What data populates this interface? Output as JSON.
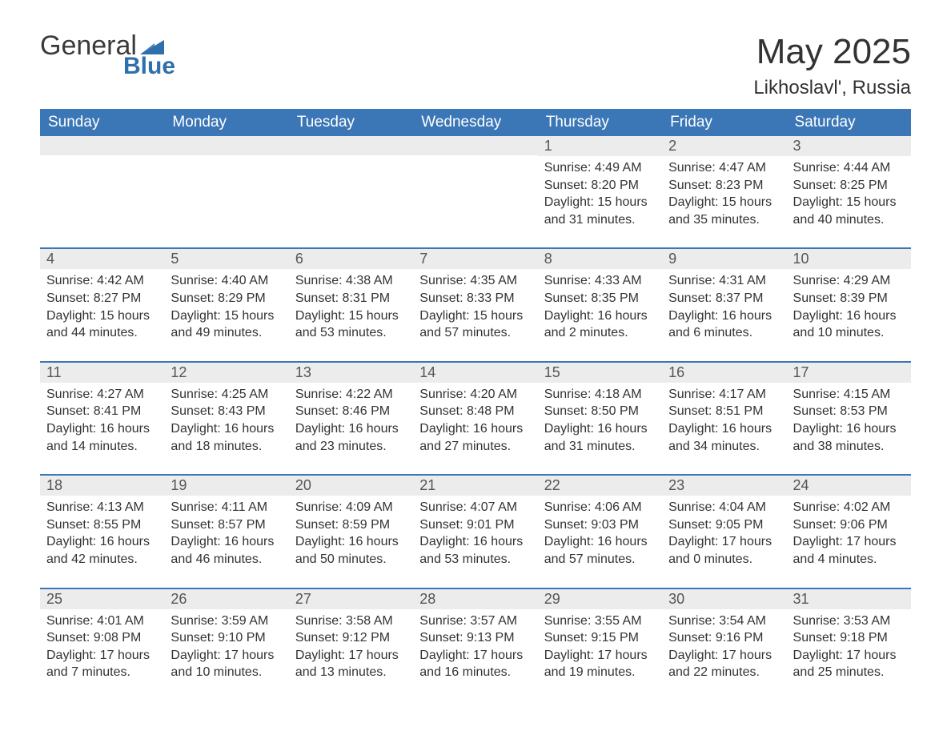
{
  "brand": {
    "word1": "General",
    "word2": "Blue",
    "logo_color": "#2f6fab"
  },
  "title": "May 2025",
  "location": "Likhoslavl', Russia",
  "colors": {
    "header_bg": "#3b77b6",
    "header_text": "#ffffff",
    "daynum_bg": "#ececec",
    "row_border": "#3b77b6",
    "text": "#333333",
    "background": "#ffffff"
  },
  "typography": {
    "title_fontsize": 44,
    "subtitle_fontsize": 24,
    "header_fontsize": 19,
    "daynum_fontsize": 18,
    "body_fontsize": 16,
    "font_family": "Arial"
  },
  "day_headers": [
    "Sunday",
    "Monday",
    "Tuesday",
    "Wednesday",
    "Thursday",
    "Friday",
    "Saturday"
  ],
  "labels": {
    "sunrise": "Sunrise:",
    "sunset": "Sunset:",
    "daylight": "Daylight:"
  },
  "weeks": [
    [
      {
        "empty": true
      },
      {
        "empty": true
      },
      {
        "empty": true
      },
      {
        "empty": true
      },
      {
        "day": "1",
        "sunrise": "4:49 AM",
        "sunset": "8:20 PM",
        "daylight": "15 hours and 31 minutes."
      },
      {
        "day": "2",
        "sunrise": "4:47 AM",
        "sunset": "8:23 PM",
        "daylight": "15 hours and 35 minutes."
      },
      {
        "day": "3",
        "sunrise": "4:44 AM",
        "sunset": "8:25 PM",
        "daylight": "15 hours and 40 minutes."
      }
    ],
    [
      {
        "day": "4",
        "sunrise": "4:42 AM",
        "sunset": "8:27 PM",
        "daylight": "15 hours and 44 minutes."
      },
      {
        "day": "5",
        "sunrise": "4:40 AM",
        "sunset": "8:29 PM",
        "daylight": "15 hours and 49 minutes."
      },
      {
        "day": "6",
        "sunrise": "4:38 AM",
        "sunset": "8:31 PM",
        "daylight": "15 hours and 53 minutes."
      },
      {
        "day": "7",
        "sunrise": "4:35 AM",
        "sunset": "8:33 PM",
        "daylight": "15 hours and 57 minutes."
      },
      {
        "day": "8",
        "sunrise": "4:33 AM",
        "sunset": "8:35 PM",
        "daylight": "16 hours and 2 minutes."
      },
      {
        "day": "9",
        "sunrise": "4:31 AM",
        "sunset": "8:37 PM",
        "daylight": "16 hours and 6 minutes."
      },
      {
        "day": "10",
        "sunrise": "4:29 AM",
        "sunset": "8:39 PM",
        "daylight": "16 hours and 10 minutes."
      }
    ],
    [
      {
        "day": "11",
        "sunrise": "4:27 AM",
        "sunset": "8:41 PM",
        "daylight": "16 hours and 14 minutes."
      },
      {
        "day": "12",
        "sunrise": "4:25 AM",
        "sunset": "8:43 PM",
        "daylight": "16 hours and 18 minutes."
      },
      {
        "day": "13",
        "sunrise": "4:22 AM",
        "sunset": "8:46 PM",
        "daylight": "16 hours and 23 minutes."
      },
      {
        "day": "14",
        "sunrise": "4:20 AM",
        "sunset": "8:48 PM",
        "daylight": "16 hours and 27 minutes."
      },
      {
        "day": "15",
        "sunrise": "4:18 AM",
        "sunset": "8:50 PM",
        "daylight": "16 hours and 31 minutes."
      },
      {
        "day": "16",
        "sunrise": "4:17 AM",
        "sunset": "8:51 PM",
        "daylight": "16 hours and 34 minutes."
      },
      {
        "day": "17",
        "sunrise": "4:15 AM",
        "sunset": "8:53 PM",
        "daylight": "16 hours and 38 minutes."
      }
    ],
    [
      {
        "day": "18",
        "sunrise": "4:13 AM",
        "sunset": "8:55 PM",
        "daylight": "16 hours and 42 minutes."
      },
      {
        "day": "19",
        "sunrise": "4:11 AM",
        "sunset": "8:57 PM",
        "daylight": "16 hours and 46 minutes."
      },
      {
        "day": "20",
        "sunrise": "4:09 AM",
        "sunset": "8:59 PM",
        "daylight": "16 hours and 50 minutes."
      },
      {
        "day": "21",
        "sunrise": "4:07 AM",
        "sunset": "9:01 PM",
        "daylight": "16 hours and 53 minutes."
      },
      {
        "day": "22",
        "sunrise": "4:06 AM",
        "sunset": "9:03 PM",
        "daylight": "16 hours and 57 minutes."
      },
      {
        "day": "23",
        "sunrise": "4:04 AM",
        "sunset": "9:05 PM",
        "daylight": "17 hours and 0 minutes."
      },
      {
        "day": "24",
        "sunrise": "4:02 AM",
        "sunset": "9:06 PM",
        "daylight": "17 hours and 4 minutes."
      }
    ],
    [
      {
        "day": "25",
        "sunrise": "4:01 AM",
        "sunset": "9:08 PM",
        "daylight": "17 hours and 7 minutes."
      },
      {
        "day": "26",
        "sunrise": "3:59 AM",
        "sunset": "9:10 PM",
        "daylight": "17 hours and 10 minutes."
      },
      {
        "day": "27",
        "sunrise": "3:58 AM",
        "sunset": "9:12 PM",
        "daylight": "17 hours and 13 minutes."
      },
      {
        "day": "28",
        "sunrise": "3:57 AM",
        "sunset": "9:13 PM",
        "daylight": "17 hours and 16 minutes."
      },
      {
        "day": "29",
        "sunrise": "3:55 AM",
        "sunset": "9:15 PM",
        "daylight": "17 hours and 19 minutes."
      },
      {
        "day": "30",
        "sunrise": "3:54 AM",
        "sunset": "9:16 PM",
        "daylight": "17 hours and 22 minutes."
      },
      {
        "day": "31",
        "sunrise": "3:53 AM",
        "sunset": "9:18 PM",
        "daylight": "17 hours and 25 minutes."
      }
    ]
  ]
}
